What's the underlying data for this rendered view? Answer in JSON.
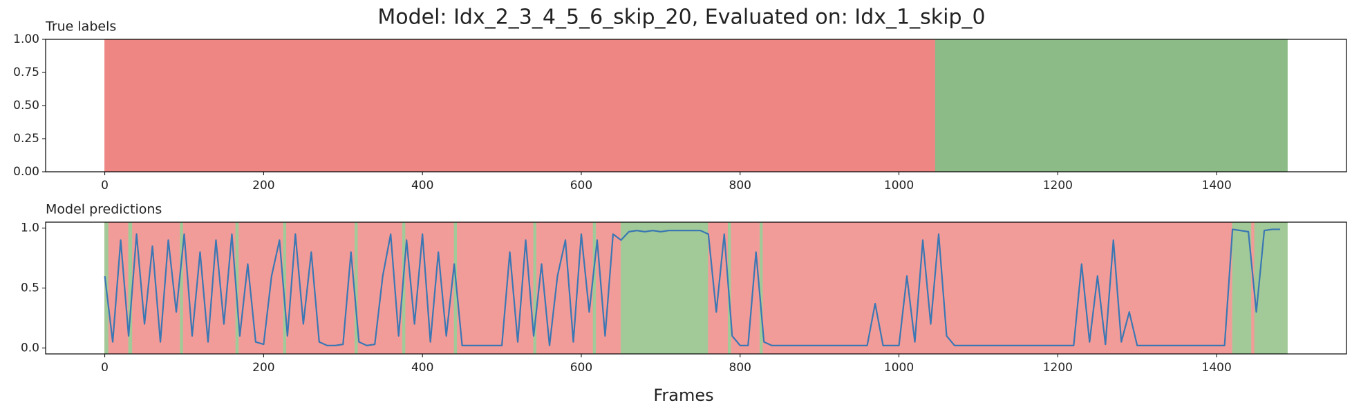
{
  "title": "Model: Idx_2_3_4_5_6_skip_20, Evaluated on: Idx_1_skip_0",
  "x_label": "Frames",
  "chart_data": [
    {
      "type": "span",
      "title": "True labels",
      "spans": [
        {
          "start": 0,
          "end": 1046,
          "color": "#ee8683"
        },
        {
          "start": 1046,
          "end": 1489,
          "color": "#8dbb87"
        }
      ],
      "xlim": [
        -74.5,
        1563.5
      ],
      "xticks": [
        0,
        200,
        400,
        600,
        800,
        1000,
        1200,
        1400
      ],
      "ylim": [
        0,
        1
      ],
      "yticks": [
        {
          "value": 0,
          "label": "0.00"
        },
        {
          "value": 0.25,
          "label": "0.25"
        },
        {
          "value": 0.5,
          "label": "0.50"
        },
        {
          "value": 0.75,
          "label": "0.75"
        },
        {
          "value": 1,
          "label": "1.00"
        }
      ]
    },
    {
      "type": "line",
      "title": "Model predictions",
      "color": "#3a77b3",
      "spans": [
        {
          "start": 0,
          "end": 650,
          "color": "#f29c99"
        },
        {
          "start": 650,
          "end": 760,
          "color": "#a2ca98"
        },
        {
          "start": 760,
          "end": 1420,
          "color": "#f29c99"
        },
        {
          "start": 1420,
          "end": 1489,
          "color": "#a2ca98"
        },
        {
          "start": 0,
          "end": 4,
          "color": "#a2ca98"
        },
        {
          "start": 30,
          "end": 34,
          "color": "#a2ca98"
        },
        {
          "start": 95,
          "end": 98,
          "color": "#a2ca98"
        },
        {
          "start": 165,
          "end": 168,
          "color": "#a2ca98"
        },
        {
          "start": 225,
          "end": 228,
          "color": "#a2ca98"
        },
        {
          "start": 315,
          "end": 318,
          "color": "#a2ca98"
        },
        {
          "start": 375,
          "end": 378,
          "color": "#a2ca98"
        },
        {
          "start": 440,
          "end": 443,
          "color": "#a2ca98"
        },
        {
          "start": 540,
          "end": 543,
          "color": "#a2ca98"
        },
        {
          "start": 615,
          "end": 618,
          "color": "#a2ca98"
        },
        {
          "start": 785,
          "end": 788,
          "color": "#a2ca98"
        },
        {
          "start": 825,
          "end": 828,
          "color": "#a2ca98"
        },
        {
          "start": 1444,
          "end": 1447,
          "color": "#f29c99"
        }
      ],
      "x": [
        0,
        10,
        20,
        30,
        40,
        50,
        60,
        70,
        80,
        90,
        100,
        110,
        120,
        130,
        140,
        150,
        160,
        170,
        180,
        190,
        200,
        210,
        220,
        230,
        240,
        250,
        260,
        270,
        280,
        290,
        300,
        310,
        320,
        330,
        340,
        350,
        360,
        370,
        380,
        390,
        400,
        410,
        420,
        430,
        440,
        450,
        460,
        470,
        480,
        490,
        500,
        510,
        520,
        530,
        540,
        550,
        560,
        570,
        580,
        590,
        600,
        610,
        620,
        630,
        640,
        650,
        660,
        670,
        680,
        690,
        700,
        710,
        720,
        730,
        740,
        750,
        760,
        770,
        780,
        790,
        800,
        810,
        820,
        830,
        840,
        850,
        860,
        870,
        880,
        890,
        900,
        910,
        920,
        930,
        940,
        950,
        960,
        970,
        980,
        990,
        1000,
        1010,
        1020,
        1030,
        1040,
        1050,
        1060,
        1070,
        1080,
        1090,
        1100,
        1110,
        1120,
        1130,
        1140,
        1150,
        1160,
        1170,
        1180,
        1190,
        1200,
        1210,
        1220,
        1230,
        1240,
        1250,
        1260,
        1270,
        1280,
        1290,
        1300,
        1310,
        1320,
        1330,
        1340,
        1350,
        1360,
        1370,
        1380,
        1390,
        1400,
        1410,
        1420,
        1430,
        1440,
        1450,
        1460,
        1470,
        1480
      ],
      "values": [
        0.6,
        0.05,
        0.9,
        0.1,
        0.95,
        0.2,
        0.85,
        0.05,
        0.9,
        0.3,
        0.95,
        0.1,
        0.8,
        0.05,
        0.9,
        0.2,
        0.95,
        0.1,
        0.7,
        0.05,
        0.03,
        0.6,
        0.9,
        0.1,
        0.95,
        0.2,
        0.8,
        0.05,
        0.02,
        0.02,
        0.03,
        0.8,
        0.05,
        0.02,
        0.03,
        0.6,
        0.95,
        0.1,
        0.9,
        0.2,
        0.95,
        0.05,
        0.8,
        0.1,
        0.7,
        0.02,
        0.02,
        0.02,
        0.02,
        0.02,
        0.02,
        0.8,
        0.05,
        0.9,
        0.1,
        0.7,
        0.02,
        0.6,
        0.9,
        0.05,
        0.95,
        0.3,
        0.9,
        0.1,
        0.95,
        0.9,
        0.97,
        0.98,
        0.97,
        0.98,
        0.97,
        0.98,
        0.98,
        0.98,
        0.98,
        0.98,
        0.95,
        0.3,
        0.95,
        0.1,
        0.02,
        0.02,
        0.8,
        0.05,
        0.02,
        0.02,
        0.02,
        0.02,
        0.02,
        0.02,
        0.02,
        0.02,
        0.02,
        0.02,
        0.02,
        0.02,
        0.02,
        0.37,
        0.02,
        0.02,
        0.02,
        0.6,
        0.05,
        0.9,
        0.2,
        0.95,
        0.1,
        0.02,
        0.02,
        0.02,
        0.02,
        0.02,
        0.02,
        0.02,
        0.02,
        0.02,
        0.02,
        0.02,
        0.02,
        0.02,
        0.02,
        0.02,
        0.02,
        0.7,
        0.05,
        0.6,
        0.03,
        0.9,
        0.05,
        0.3,
        0.02,
        0.02,
        0.02,
        0.02,
        0.02,
        0.02,
        0.02,
        0.02,
        0.02,
        0.02,
        0.02,
        0.02,
        0.99,
        0.98,
        0.97,
        0.3,
        0.98,
        0.99,
        0.99
      ],
      "xlim": [
        -74.5,
        1563.5
      ],
      "xticks": [
        0,
        200,
        400,
        600,
        800,
        1000,
        1200,
        1400
      ],
      "ylim": [
        -0.05,
        1.05
      ],
      "yticks": [
        {
          "value": 0,
          "label": "0.0"
        },
        0.5,
        {
          "value": 1,
          "label": "1.0"
        }
      ]
    }
  ]
}
